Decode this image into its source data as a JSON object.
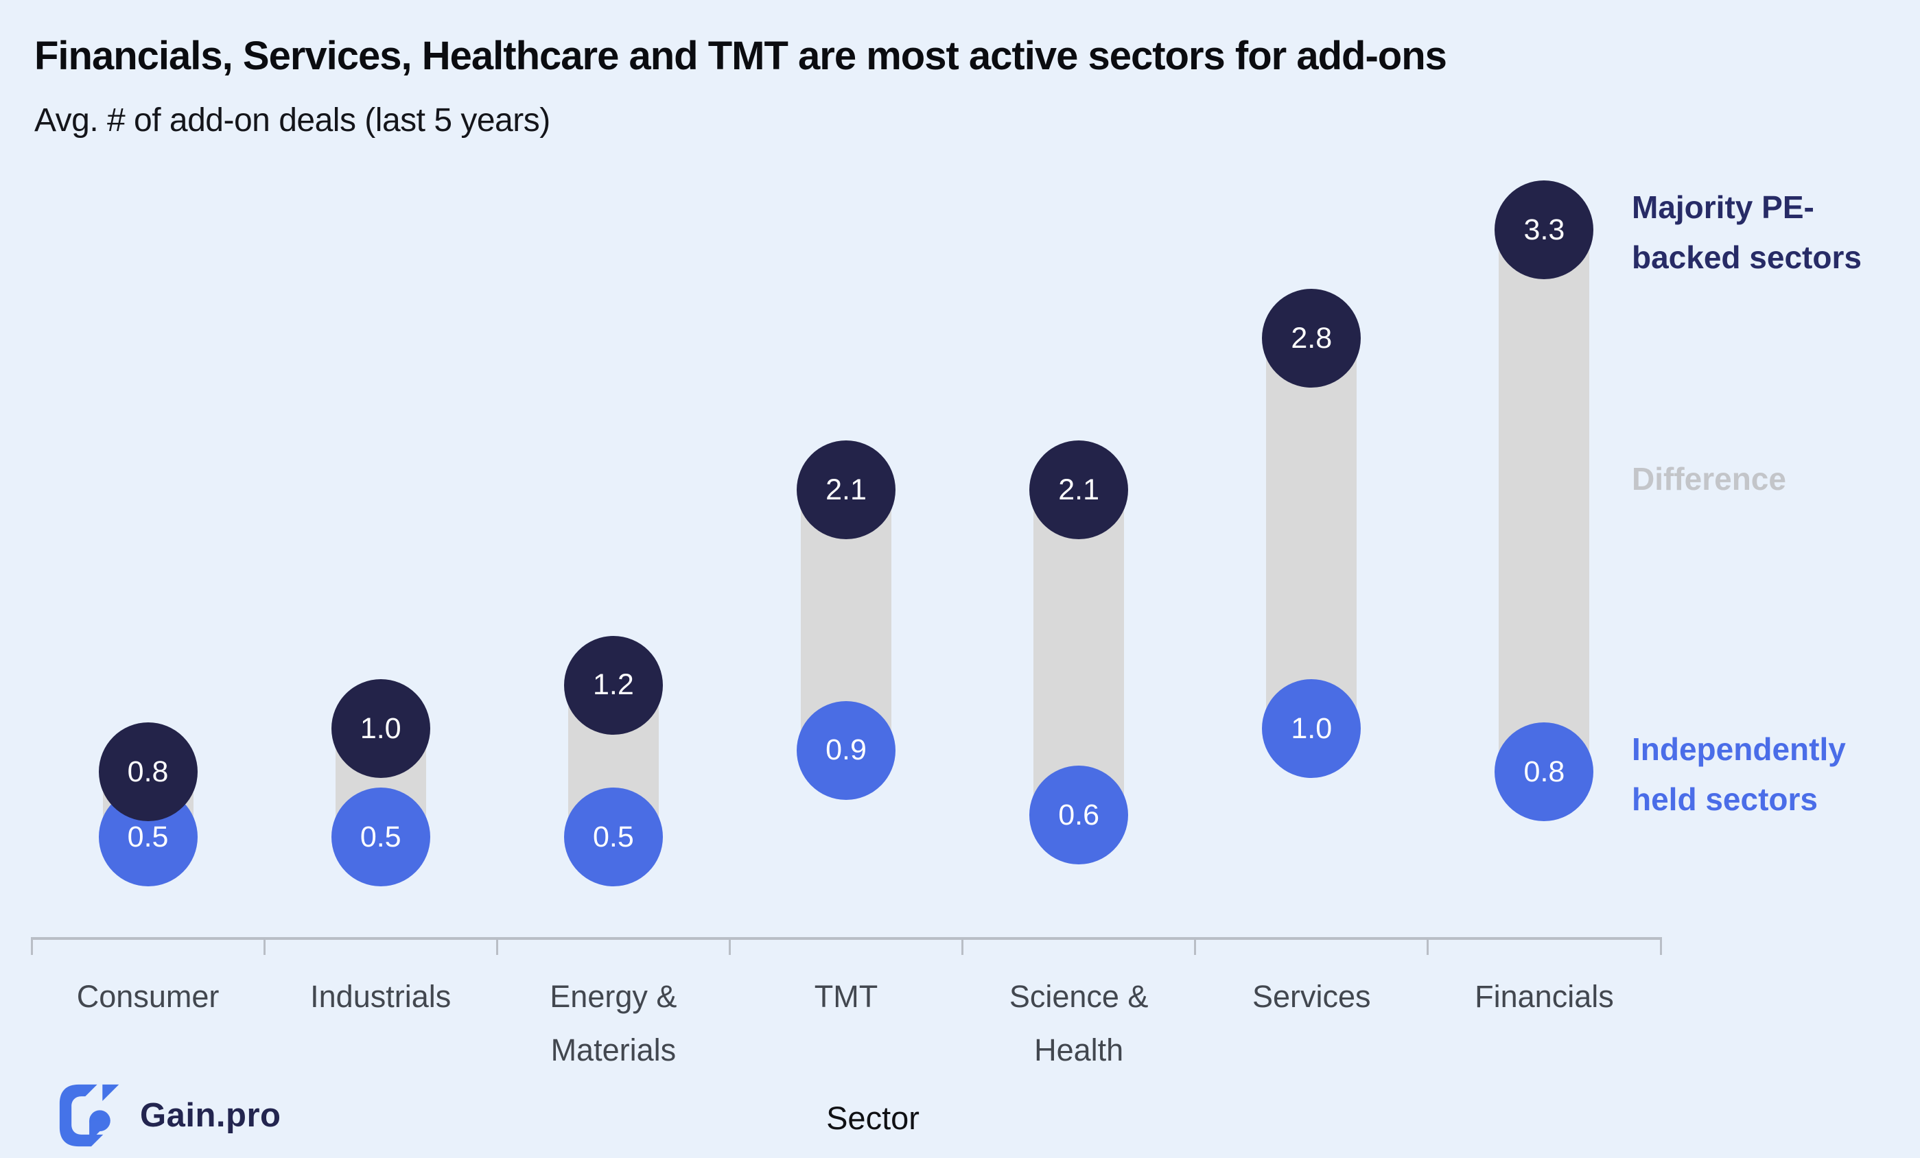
{
  "header": {
    "title": "Financials, Services, Healthcare and TMT are most active sectors for add-ons",
    "subtitle": "Avg. # of add-on deals (last 5 years)"
  },
  "chart_data": {
    "type": "dumbbell",
    "title": "Financials, Services, Healthcare and TMT are most active sectors for add-ons",
    "subtitle": "Avg. # of add-on deals (last 5 years)",
    "categories": [
      "Consumer",
      "Industrials",
      "Energy & Materials",
      "TMT",
      "Science & Health",
      "Services",
      "Financials"
    ],
    "category_label_lines": [
      [
        "Consumer"
      ],
      [
        "Industrials"
      ],
      [
        "Energy &",
        "Materials"
      ],
      [
        "TMT"
      ],
      [
        "Science &",
        "Health"
      ],
      [
        "Services"
      ],
      [
        "Financials"
      ]
    ],
    "series": [
      {
        "name": "Majority PE-backed sectors",
        "values": [
          0.8,
          1.0,
          1.2,
          2.1,
          2.1,
          2.8,
          3.3
        ],
        "color": "#232349"
      },
      {
        "name": "Independently held sectors",
        "values": [
          0.5,
          0.5,
          0.5,
          0.9,
          0.6,
          1.0,
          0.8
        ],
        "color": "#4a6de4"
      }
    ],
    "connector_label": "Difference",
    "connector_color": "#d9d9d9",
    "xlabel": "Sector",
    "ylabel": "",
    "ylim": [
      0,
      3.5
    ],
    "grid": false,
    "legend_position": "right"
  },
  "legend": {
    "items": [
      {
        "label": "Majority PE-backed sectors",
        "label_lines": [
          "Majority PE-",
          "backed sectors"
        ],
        "color": "#272b66"
      },
      {
        "label": "Difference",
        "label_lines": [
          "Difference"
        ],
        "color": "#c3c5c9"
      },
      {
        "label": "Independently held sectors",
        "label_lines": [
          "Independently",
          "held sectors"
        ],
        "color": "#4a6de8"
      }
    ]
  },
  "footer": {
    "logo_text": "Gain.pro"
  },
  "colors": {
    "background": "#e9f1fb",
    "pe_circle": "#232349",
    "ind_circle": "#4a6de4",
    "difference_bar": "#d9d9d9",
    "axis": "#b9bec6",
    "axis_label": "#42474f",
    "logo_blue": "#4573e8",
    "logo_navy": "#23254f"
  }
}
